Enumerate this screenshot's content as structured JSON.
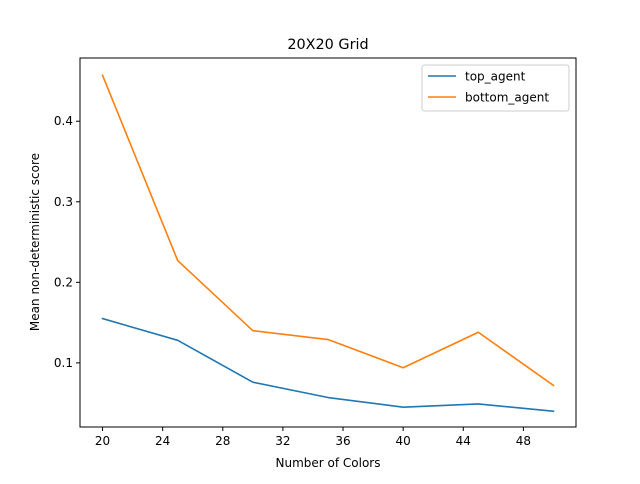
{
  "chart_data": {
    "type": "line",
    "title": "20X20 Grid",
    "xlabel": "Number of Colors",
    "ylabel": "Mean non-deterministic score",
    "xlim": [
      18.5,
      51.5
    ],
    "ylim": [
      0.0204,
      0.4785
    ],
    "xticks": [
      20,
      24,
      28,
      32,
      36,
      40,
      44,
      48
    ],
    "yticks": [
      0.1,
      0.2,
      0.3,
      0.4
    ],
    "x": [
      20,
      25,
      30,
      35,
      40,
      45,
      50
    ],
    "series": [
      {
        "name": "top_agent",
        "color": "#1f77b4",
        "values": [
          0.155,
          0.128,
          0.076,
          0.057,
          0.045,
          0.049,
          0.04
        ]
      },
      {
        "name": "bottom_agent",
        "color": "#ff7f0e",
        "values": [
          0.457,
          0.227,
          0.14,
          0.129,
          0.094,
          0.138,
          0.072
        ]
      }
    ],
    "legend": "upper right",
    "grid": false
  }
}
